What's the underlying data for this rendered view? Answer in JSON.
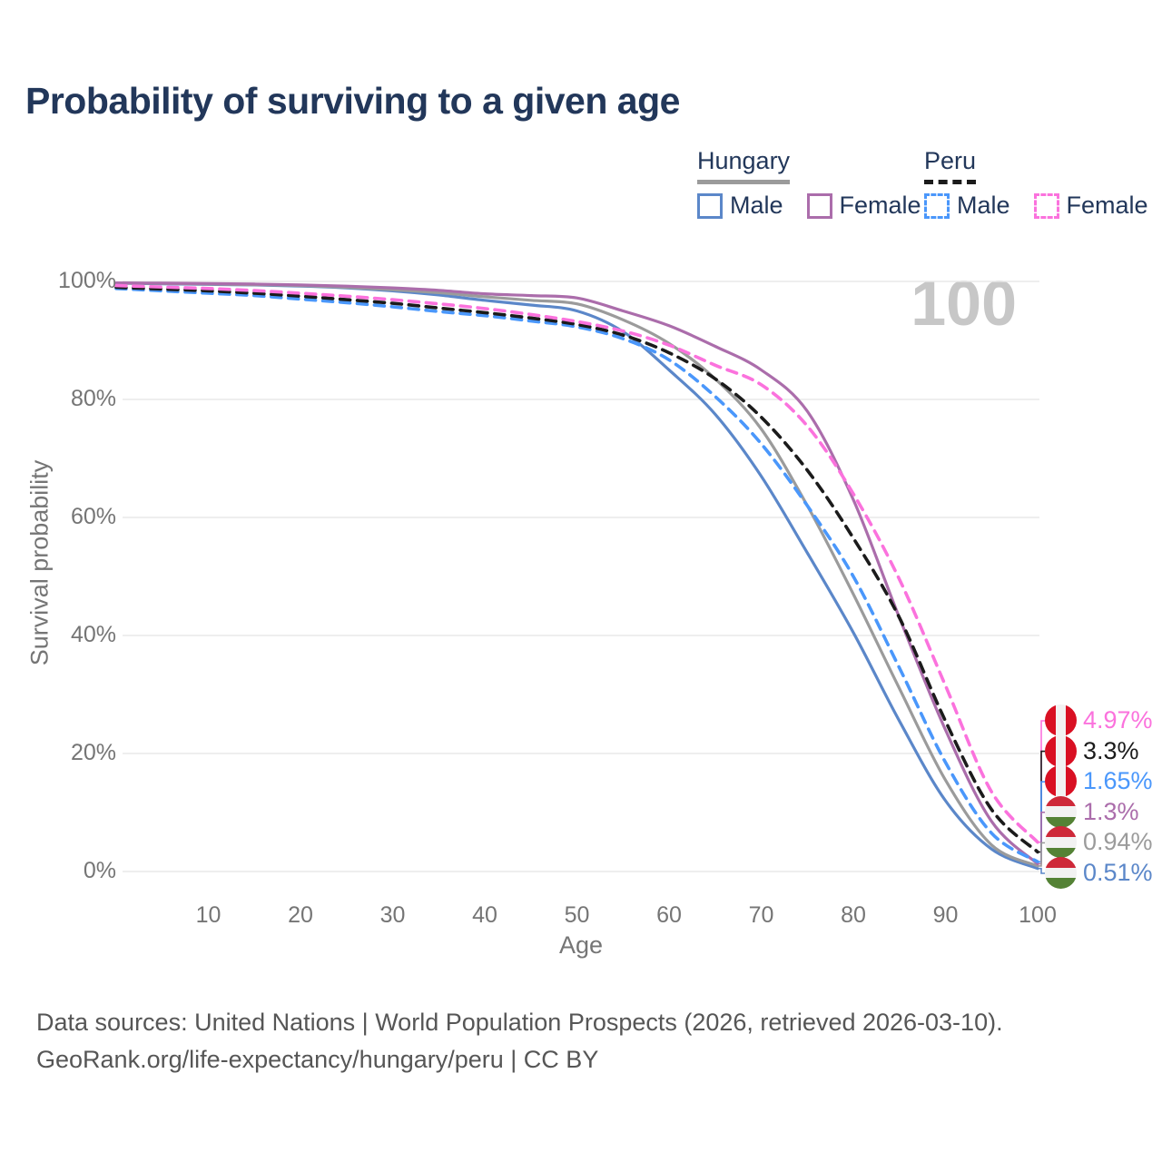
{
  "title": "Probability of surviving to a given age",
  "watermark": "100",
  "legend": {
    "hungary": {
      "label": "Hungary",
      "male_label": "Male",
      "female_label": "Female"
    },
    "peru": {
      "label": "Peru",
      "male_label": "Male",
      "female_label": "Female"
    }
  },
  "y_axis": {
    "title": "Survival probability",
    "ticks": [
      {
        "label": "0%",
        "value": 0
      },
      {
        "label": "20%",
        "value": 20
      },
      {
        "label": "40%",
        "value": 40
      },
      {
        "label": "60%",
        "value": 60
      },
      {
        "label": "80%",
        "value": 80
      },
      {
        "label": "100%",
        "value": 100
      }
    ]
  },
  "x_axis": {
    "title": "Age",
    "ticks": [
      10,
      20,
      30,
      40,
      50,
      60,
      70,
      80,
      90,
      100
    ]
  },
  "footer": {
    "line1": "Data sources: United Nations | World Population Prospects (2026, retrieved 2026-03-10).",
    "line2": "GeoRank.org/life-expectancy/hungary/peru | CC BY"
  },
  "colors": {
    "title_text": "#22375a",
    "axis_text": "#757575",
    "gridline": "#e9e9e9",
    "watermark": "#c7c7c7",
    "footer_text": "#565656",
    "peru_flag_red": "#d91023",
    "hungary_flag_red": "#ce2939",
    "hungary_flag_green": "#548235",
    "flag_white": "#f2f2f2"
  },
  "chart_data": {
    "type": "line",
    "title": "Probability of surviving to a given age",
    "xlabel": "Age",
    "ylabel": "Survival probability",
    "xlim": [
      0,
      100
    ],
    "ylim": [
      0,
      100
    ],
    "grid": true,
    "legend_position": "top-right",
    "x_ages": [
      0,
      5,
      10,
      15,
      20,
      25,
      30,
      35,
      40,
      45,
      50,
      55,
      60,
      65,
      70,
      75,
      80,
      85,
      90,
      95,
      100
    ],
    "series": [
      {
        "name": "Hungary Male",
        "country": "Hungary",
        "sex": "Male",
        "color": "#5b87c9",
        "dashed": false,
        "end_label": "0.51%",
        "flag": "hungary",
        "values": [
          99.7,
          99.6,
          99.5,
          99.4,
          99.2,
          98.9,
          98.4,
          97.7,
          96.8,
          96.0,
          95.0,
          91.5,
          85.0,
          77.5,
          67.0,
          54.0,
          40.5,
          25.5,
          12.0,
          3.8,
          0.51
        ]
      },
      {
        "name": "Hungary Total",
        "country": "Hungary",
        "sex": "Both",
        "color": "#9b9b9b",
        "dashed": false,
        "end_label": "0.94%",
        "flag": "hungary",
        "values": [
          99.7,
          99.65,
          99.55,
          99.45,
          99.3,
          99.0,
          98.6,
          98.1,
          97.4,
          96.8,
          96.2,
          93.5,
          89.5,
          83.5,
          75.0,
          62.0,
          47.0,
          31.0,
          15.5,
          4.5,
          0.94
        ]
      },
      {
        "name": "Hungary Female",
        "country": "Hungary",
        "sex": "Female",
        "color": "#ab6dab",
        "dashed": false,
        "end_label": "1.3%",
        "flag": "hungary",
        "values": [
          99.75,
          99.7,
          99.65,
          99.55,
          99.4,
          99.2,
          98.9,
          98.5,
          97.9,
          97.6,
          97.2,
          95.0,
          92.5,
          89.0,
          85.0,
          78.0,
          63.0,
          43.0,
          24.0,
          8.5,
          1.3
        ]
      },
      {
        "name": "Peru Male",
        "country": "Peru",
        "sex": "Male",
        "color": "#4a97fb",
        "dashed": true,
        "end_label": "1.65%",
        "flag": "peru",
        "values": [
          98.8,
          98.4,
          98.0,
          97.6,
          97.0,
          96.4,
          95.7,
          94.9,
          94.2,
          93.3,
          92.3,
          90.3,
          86.7,
          80.5,
          72.5,
          62.0,
          50.0,
          34.5,
          18.5,
          6.5,
          1.65
        ]
      },
      {
        "name": "Peru Total",
        "country": "Peru",
        "sex": "Both",
        "color": "#1b1b1b",
        "dashed": true,
        "end_label": "3.3%",
        "flag": "peru",
        "values": [
          99.0,
          98.7,
          98.4,
          98.0,
          97.5,
          96.9,
          96.3,
          95.5,
          94.7,
          93.8,
          92.7,
          90.9,
          87.9,
          83.5,
          77.0,
          68.0,
          56.5,
          43.0,
          25.5,
          10.5,
          3.3
        ]
      },
      {
        "name": "Peru Female",
        "country": "Peru",
        "sex": "Female",
        "color": "#fb72dd",
        "dashed": true,
        "end_label": "4.97%",
        "flag": "peru",
        "values": [
          99.3,
          99.05,
          98.8,
          98.45,
          98.0,
          97.5,
          96.9,
          96.2,
          95.4,
          94.4,
          93.2,
          91.6,
          89.2,
          85.8,
          82.5,
          75.5,
          64.0,
          49.5,
          31.5,
          13.5,
          4.97
        ]
      }
    ]
  }
}
